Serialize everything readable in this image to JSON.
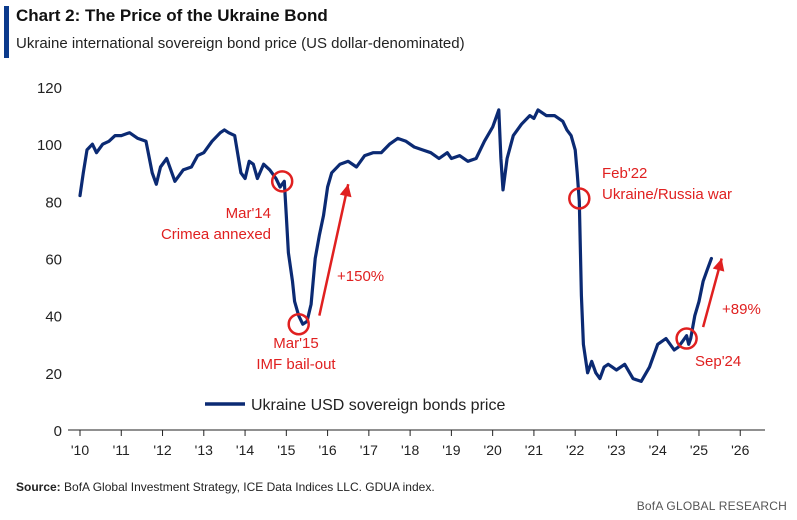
{
  "header": {
    "title": "Chart 2: The Price of the Ukraine Bond",
    "subtitle": "Ukraine international sovereign bond price (US dollar-denominated)"
  },
  "source": {
    "label": "Source:",
    "text": "BofA Global Investment Strategy, ICE Data Indices LLC. GDUA index."
  },
  "footer": {
    "brand": "BofA GLOBAL RESEARCH"
  },
  "colors": {
    "series": "#0b2a73",
    "annotation": "#e02020",
    "axis": "#222222",
    "accent": "#0b3a8c"
  },
  "chart_data": {
    "type": "line",
    "title": "Chart 2: The Price of the Ukraine Bond",
    "subtitle": "Ukraine international sovereign bond price (US dollar-denominated)",
    "xlabel": "",
    "ylabel": "",
    "xlim": [
      2010,
      2026.9
    ],
    "ylim": [
      0,
      120
    ],
    "x_ticks": [
      2010,
      2011,
      2012,
      2013,
      2014,
      2015,
      2016,
      2017,
      2018,
      2019,
      2020,
      2021,
      2022,
      2023,
      2024,
      2025,
      2026
    ],
    "x_tick_labels": [
      "'10",
      "'11",
      "'12",
      "'13",
      "'14",
      "'15",
      "'16",
      "'17",
      "'18",
      "'19",
      "'20",
      "'21",
      "'22",
      "'23",
      "'24",
      "'25",
      "'26"
    ],
    "y_ticks": [
      0,
      20,
      40,
      60,
      80,
      100,
      120
    ],
    "grid": false,
    "legend": {
      "position": "bottom-center"
    },
    "series": [
      {
        "name": "Ukraine USD sovereign bonds price",
        "x": [
          2010.0,
          2010.08,
          2010.17,
          2010.3,
          2010.4,
          2010.55,
          2010.7,
          2010.85,
          2011.0,
          2011.2,
          2011.4,
          2011.6,
          2011.75,
          2011.85,
          2011.95,
          2012.1,
          2012.3,
          2012.5,
          2012.7,
          2012.85,
          2013.0,
          2013.2,
          2013.4,
          2013.5,
          2013.6,
          2013.75,
          2013.9,
          2014.0,
          2014.1,
          2014.2,
          2014.3,
          2014.45,
          2014.6,
          2014.75,
          2014.85,
          2014.95,
          2015.0,
          2015.05,
          2015.15,
          2015.2,
          2015.3,
          2015.4,
          2015.5,
          2015.6,
          2015.7,
          2015.8,
          2015.9,
          2016.0,
          2016.1,
          2016.3,
          2016.5,
          2016.7,
          2016.9,
          2017.1,
          2017.3,
          2017.5,
          2017.7,
          2017.9,
          2018.1,
          2018.3,
          2018.5,
          2018.7,
          2018.9,
          2019.0,
          2019.2,
          2019.4,
          2019.6,
          2019.8,
          2020.0,
          2020.1,
          2020.15,
          2020.2,
          2020.25,
          2020.35,
          2020.5,
          2020.7,
          2020.9,
          2021.0,
          2021.1,
          2021.3,
          2021.5,
          2021.7,
          2021.8,
          2021.9,
          2022.0,
          2022.05,
          2022.1,
          2022.15,
          2022.2,
          2022.3,
          2022.4,
          2022.5,
          2022.6,
          2022.7,
          2022.8,
          2022.9,
          2023.0,
          2023.2,
          2023.4,
          2023.6,
          2023.8,
          2024.0,
          2024.2,
          2024.4,
          2024.5,
          2024.6,
          2024.7,
          2024.75,
          2024.8,
          2024.9,
          2025.0,
          2025.1,
          2025.2,
          2025.3
        ],
        "values": [
          82,
          90,
          98,
          100,
          97,
          100,
          101,
          103,
          103,
          104,
          102,
          101,
          90,
          86,
          92,
          95,
          87,
          91,
          92,
          96,
          97,
          101,
          104,
          105,
          104,
          103,
          90,
          88,
          94,
          93,
          88,
          93,
          91,
          88,
          85,
          87,
          75,
          62,
          52,
          45,
          40,
          37,
          38,
          44,
          60,
          68,
          75,
          85,
          90,
          93,
          94,
          92,
          96,
          97,
          97,
          100,
          102,
          101,
          99,
          98,
          97,
          95,
          97,
          95,
          96,
          94,
          95,
          101,
          106,
          110,
          112,
          95,
          84,
          95,
          103,
          107,
          110,
          109,
          112,
          110,
          110,
          108,
          105,
          103,
          98,
          90,
          80,
          47,
          30,
          20,
          24,
          20,
          18,
          22,
          23,
          22,
          21,
          23,
          18,
          17,
          22,
          30,
          32,
          28,
          29,
          31,
          33,
          30,
          32,
          40,
          45,
          52,
          56,
          60
        ]
      }
    ],
    "annotations": [
      {
        "id": "crimea",
        "lines": [
          "Mar'14",
          "Crimea annexed"
        ],
        "point": [
          2014.9,
          87
        ]
      },
      {
        "id": "imf",
        "lines": [
          "Mar'15",
          "IMF bail-out"
        ],
        "point": [
          2015.3,
          37
        ]
      },
      {
        "id": "war",
        "lines": [
          "Feb'22",
          "Ukraine/Russia war"
        ],
        "point": [
          2022.1,
          81
        ]
      },
      {
        "id": "sep24",
        "lines": [
          "Sep'24"
        ],
        "point": [
          2024.7,
          32
        ]
      },
      {
        "id": "gain1",
        "lines": [
          "+150%"
        ],
        "arrow_from": [
          2015.8,
          40
        ],
        "arrow_to": [
          2016.5,
          86
        ]
      },
      {
        "id": "gain2",
        "lines": [
          "+89%"
        ],
        "arrow_from": [
          2025.1,
          36
        ],
        "arrow_to": [
          2025.55,
          60
        ]
      }
    ]
  }
}
